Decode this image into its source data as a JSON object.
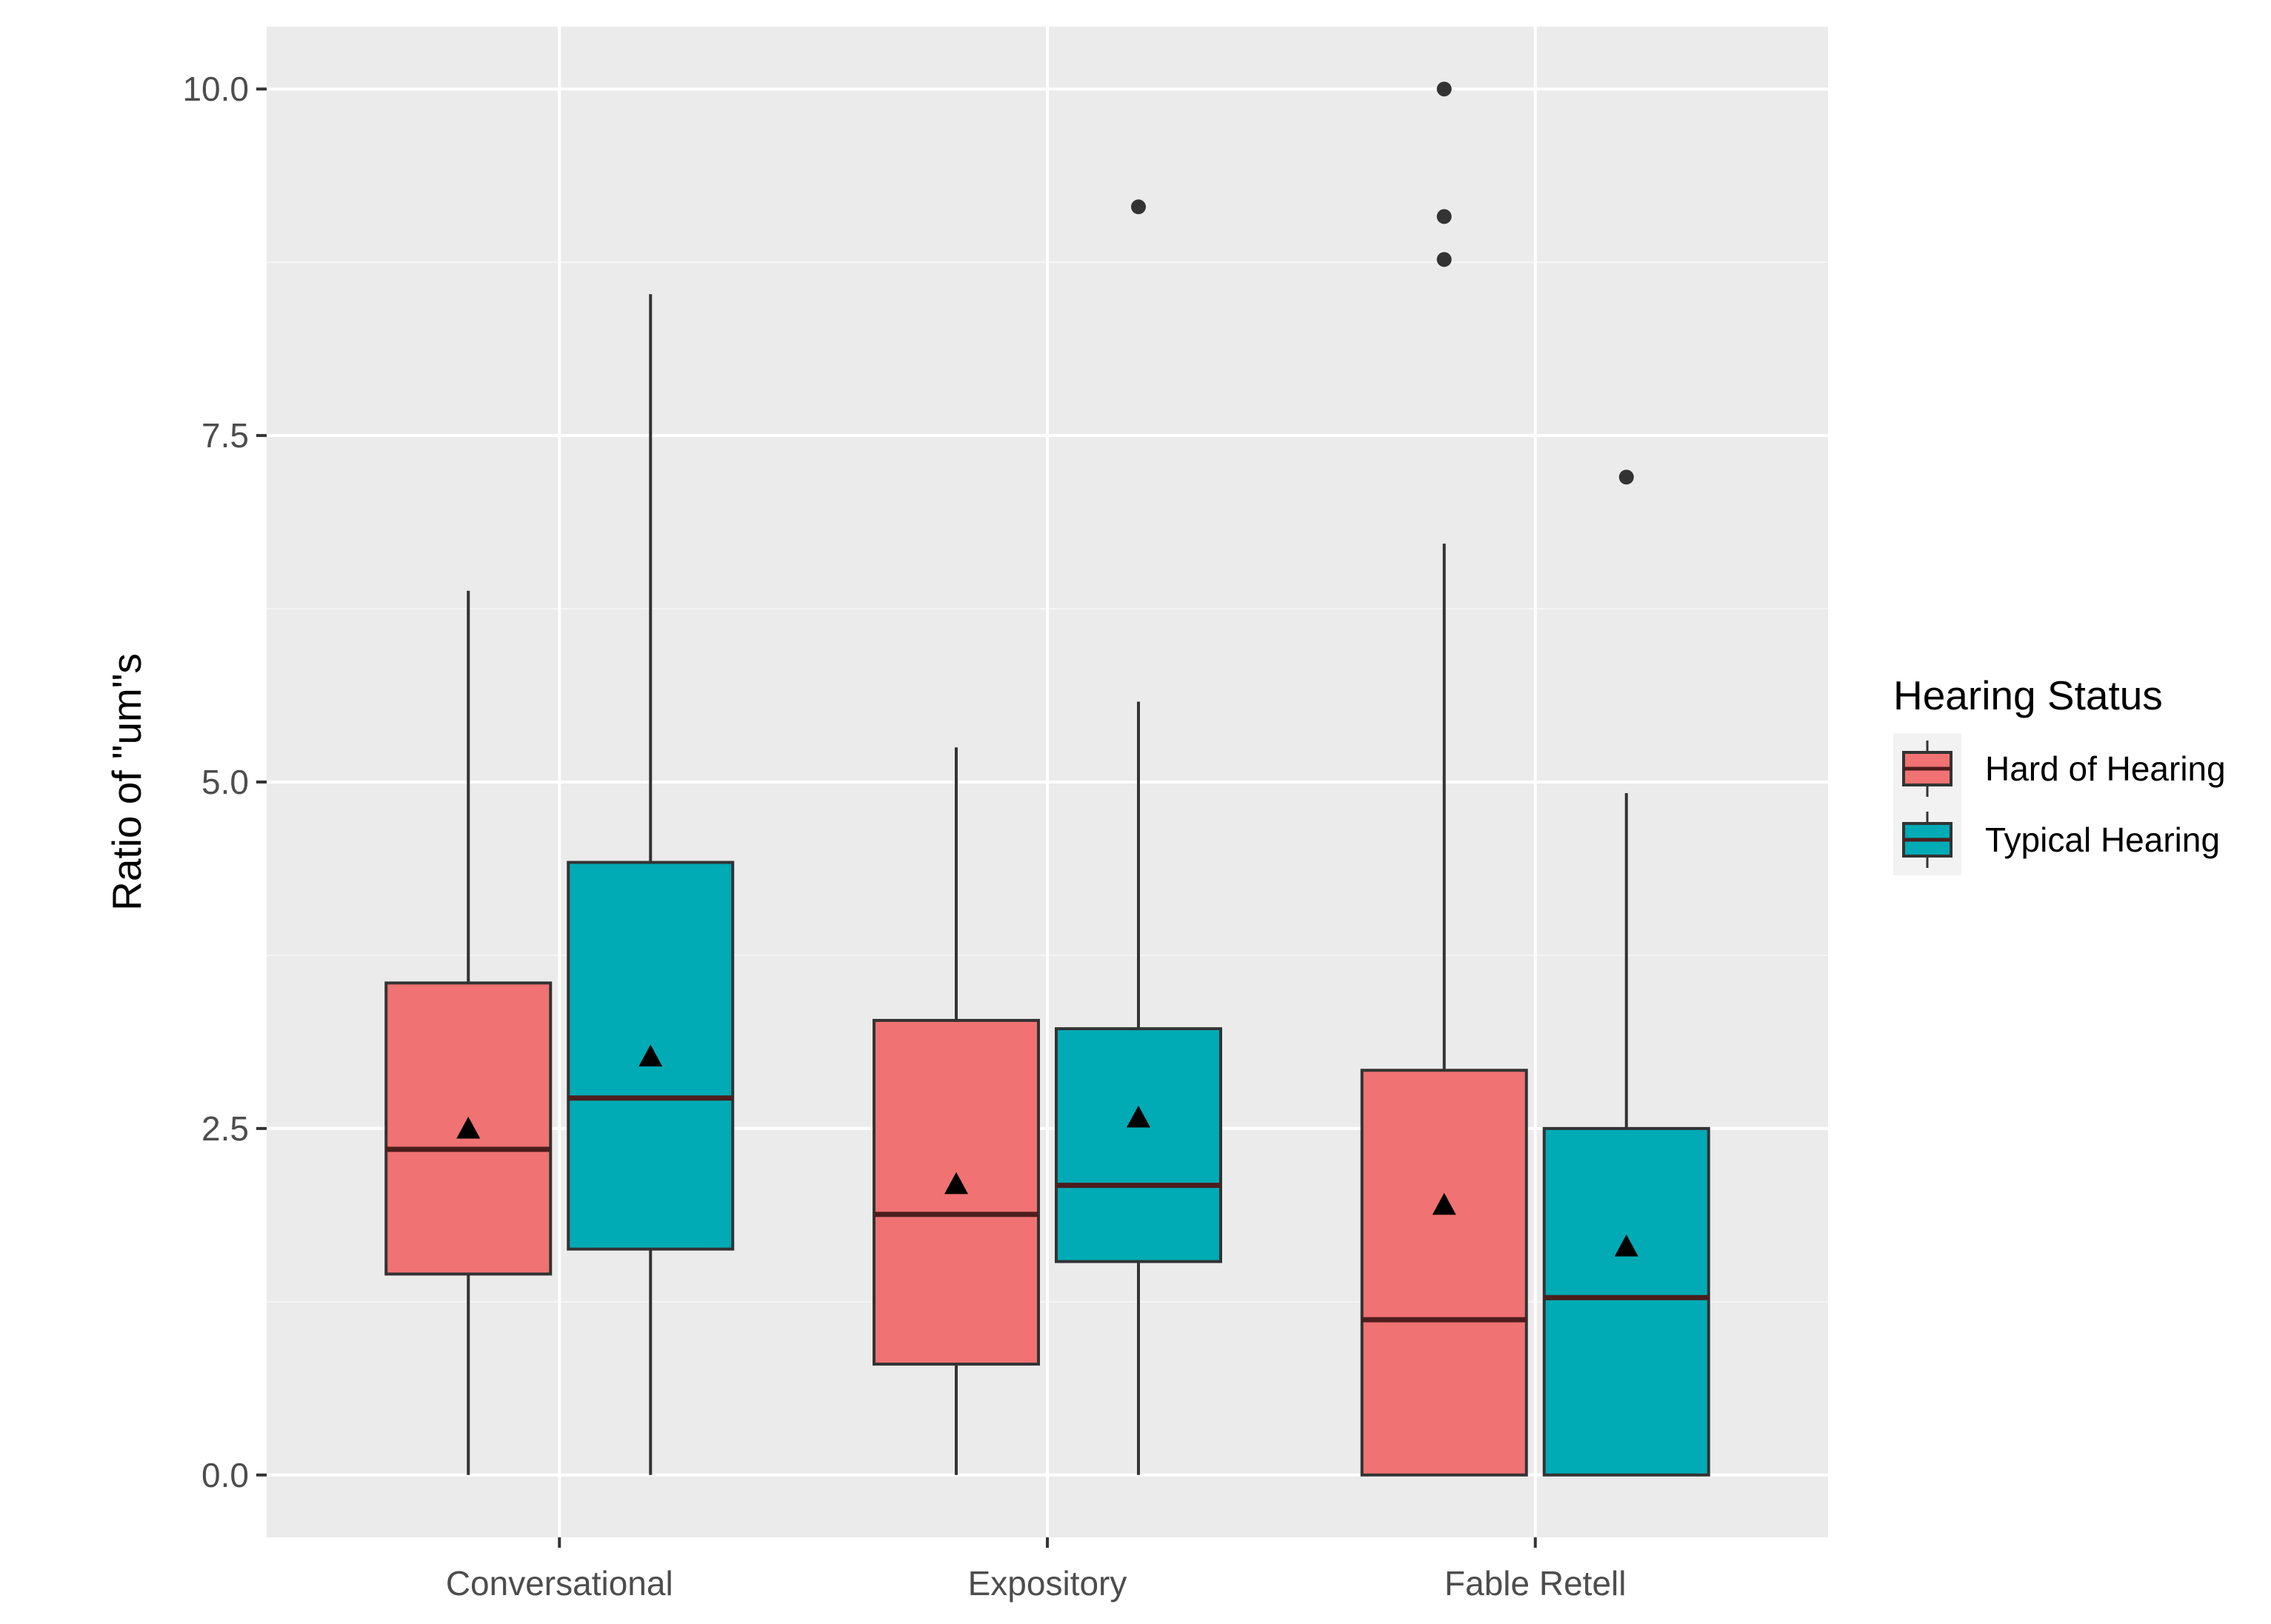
{
  "chart_data": {
    "type": "boxplot",
    "title": "",
    "xlabel": "",
    "ylabel": "Ratio of \"um\"s",
    "ylim": [
      -0.45,
      10.45
    ],
    "y_ticks": [
      0.0,
      2.5,
      5.0,
      7.5,
      10.0
    ],
    "y_tick_labels": [
      "0.0",
      "2.5",
      "5.0",
      "7.5",
      "10.0"
    ],
    "grid": true,
    "legend_position": "right",
    "categories": [
      "Conversational",
      "Expository",
      "Fable Retell"
    ],
    "legend": {
      "title": "Hearing Status",
      "entries": [
        {
          "name": "Hard of Hearing",
          "color": "#F17272"
        },
        {
          "name": "Typical Hearing",
          "color": "#00ABB5"
        }
      ]
    },
    "series": [
      {
        "name": "Hard of Hearing",
        "color": "#F17272",
        "boxes": [
          {
            "category": "Conversational",
            "min": 0.0,
            "q1": 1.45,
            "median": 2.35,
            "q3": 3.55,
            "max": 6.38,
            "mean": 2.5,
            "outliers": []
          },
          {
            "category": "Expository",
            "min": 0.0,
            "q1": 0.8,
            "median": 1.88,
            "q3": 3.28,
            "max": 5.25,
            "mean": 2.1,
            "outliers": []
          },
          {
            "category": "Fable Retell",
            "min": 0.0,
            "q1": 0.0,
            "median": 1.12,
            "q3": 2.92,
            "max": 6.72,
            "mean": 1.95,
            "outliers": [
              10.0,
              9.08,
              8.77
            ]
          }
        ]
      },
      {
        "name": "Typical Hearing",
        "color": "#00ABB5",
        "boxes": [
          {
            "category": "Conversational",
            "min": 0.0,
            "q1": 1.63,
            "median": 2.72,
            "q3": 4.42,
            "max": 8.52,
            "mean": 3.02,
            "outliers": []
          },
          {
            "category": "Expository",
            "min": 0.0,
            "q1": 1.54,
            "median": 2.09,
            "q3": 3.22,
            "max": 5.58,
            "mean": 2.58,
            "outliers": [
              9.15
            ]
          },
          {
            "category": "Fable Retell",
            "min": 0.0,
            "q1": 0.0,
            "median": 1.28,
            "q3": 2.5,
            "max": 4.92,
            "mean": 1.65,
            "outliers": [
              7.2
            ]
          }
        ]
      }
    ],
    "mean_marker": "triangle",
    "colors": {
      "panel_background": "#EBEBEB",
      "grid_major": "#FFFFFF",
      "grid_minor": "#F5F5F5",
      "box_outline": "#333333",
      "median_line": "#4D1D1D",
      "mean_marker": "#000000",
      "outlier": "#333333",
      "tick_text": "#4D4D4D"
    }
  }
}
